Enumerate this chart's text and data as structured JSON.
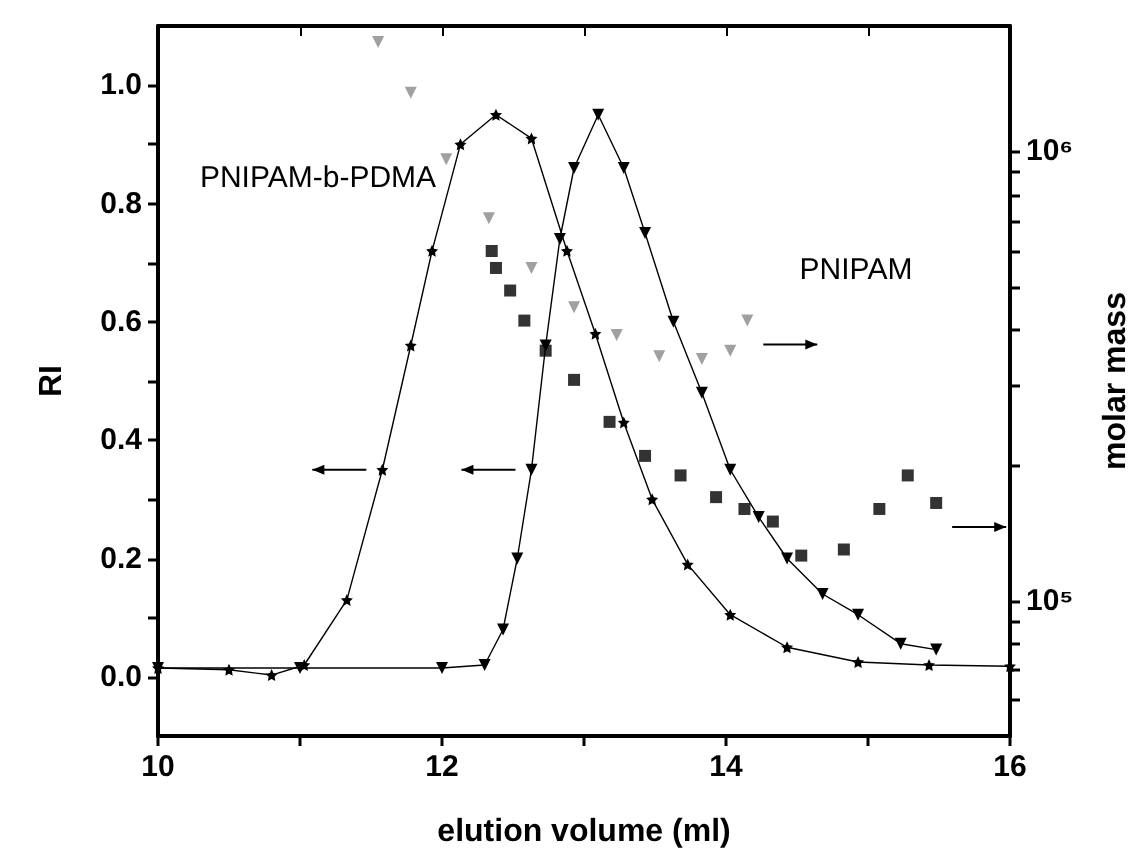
{
  "chart_data": {
    "type": "line",
    "xlabel": "elution volume (ml)",
    "ylabel": "RI",
    "y2label": "molar mass",
    "xlim": [
      10,
      16
    ],
    "xticks": [
      10,
      {
        "value": 11,
        "label": null
      },
      12,
      {
        "value": 13,
        "label": null
      },
      14,
      {
        "value": 15,
        "label": null
      },
      16
    ],
    "ylim": [
      -0.1,
      1.1
    ],
    "yticks": [
      {
        "value": 0,
        "label": "0.0"
      },
      {
        "value": 0.1,
        "label": null
      },
      {
        "value": 0.2,
        "label": "0.2"
      },
      {
        "value": 0.3,
        "label": null
      },
      {
        "value": 0.4,
        "label": "0.4"
      },
      {
        "value": 0.5,
        "label": null
      },
      {
        "value": 0.6,
        "label": "0.6"
      },
      {
        "value": 0.7,
        "label": null
      },
      {
        "value": 0.8,
        "label": "0.8"
      },
      {
        "value": 0.9,
        "label": null
      },
      {
        "value": 1,
        "label": "1.0"
      }
    ],
    "y2lim": [
      50000,
      1900000
    ],
    "y2ticks": [
      {
        "value": 60000,
        "label": null
      },
      {
        "value": 70000,
        "label": null
      },
      {
        "value": 80000,
        "label": null
      },
      {
        "value": 90000,
        "label": null
      },
      {
        "value": 100000,
        "label": "10⁵"
      },
      {
        "value": 200000,
        "label": null
      },
      {
        "value": 300000,
        "label": null
      },
      {
        "value": 400000,
        "label": null
      },
      {
        "value": 500000,
        "label": null
      },
      {
        "value": 600000,
        "label": null
      },
      {
        "value": 700000,
        "label": null
      },
      {
        "value": 800000,
        "label": null
      },
      {
        "value": 900000,
        "label": null
      },
      {
        "value": 1000000,
        "label": "10⁶"
      }
    ],
    "log": "y2",
    "grid": false,
    "line_style": "solid",
    "series": [
      {
        "marker": "star",
        "color": "#000000",
        "x": [
          10,
          10.5,
          10.8,
          11.03,
          11.33,
          11.58,
          11.78,
          11.93,
          12.13,
          12.38,
          12.63,
          12.88,
          13.08,
          13.28,
          13.48,
          13.73,
          14.03,
          14.43,
          14.93,
          15.43,
          16
        ],
        "values": [
          0.015,
          0.012,
          0.003,
          0.02,
          0.13,
          0.35,
          0.56,
          0.72,
          0.9,
          0.95,
          0.91,
          0.72,
          0.58,
          0.43,
          0.3,
          0.19,
          0.105,
          0.05,
          0.025,
          0.02,
          0.018
        ]
      },
      {
        "marker": "triangle",
        "color": "#000000",
        "x": [
          10,
          11,
          12,
          12.3,
          12.43,
          12.53,
          12.63,
          12.73,
          12.83,
          12.93,
          13.1,
          13.28,
          13.43,
          13.63,
          13.83,
          14.03,
          14.23,
          14.43,
          14.68,
          14.93,
          15.23,
          15.48
        ],
        "values": [
          0.015,
          0.015,
          0.015,
          0.02,
          0.08,
          0.2,
          0.35,
          0.56,
          0.74,
          0.86,
          0.95,
          0.86,
          0.75,
          0.6,
          0.48,
          0.35,
          0.27,
          0.2,
          0.14,
          0.105,
          0.056,
          0.046
        ]
      },
      {
        "type": "scatter",
        "axis": "y2",
        "marker": "triangle",
        "color": "#888888",
        "x": [
          11.55,
          11.78,
          12.03,
          12.33,
          12.63,
          12.93,
          13.23,
          13.53,
          13.83,
          14.03,
          14.15
        ],
        "values": [
          1750000,
          1350000,
          960000,
          710000,
          550000,
          450000,
          390000,
          350000,
          345000,
          360000,
          420000
        ]
      },
      {
        "type": "scatter",
        "axis": "y2",
        "marker": "square",
        "color": "#000000",
        "x": [
          12.35,
          12.38,
          12.48,
          12.58,
          12.73,
          12.93,
          13.18,
          13.43,
          13.68,
          13.93,
          14.13,
          14.33,
          14.53,
          14.83,
          15.08,
          15.28,
          15.48
        ],
        "values": [
          600000,
          550000,
          490000,
          420000,
          360000,
          310000,
          250000,
          210000,
          190000,
          170000,
          160000,
          150000,
          126000,
          130000,
          160000,
          190000,
          165000
        ]
      }
    ],
    "annotations": [
      "PNIPAM-b-PDMA",
      "PNIPAM"
    ]
  }
}
